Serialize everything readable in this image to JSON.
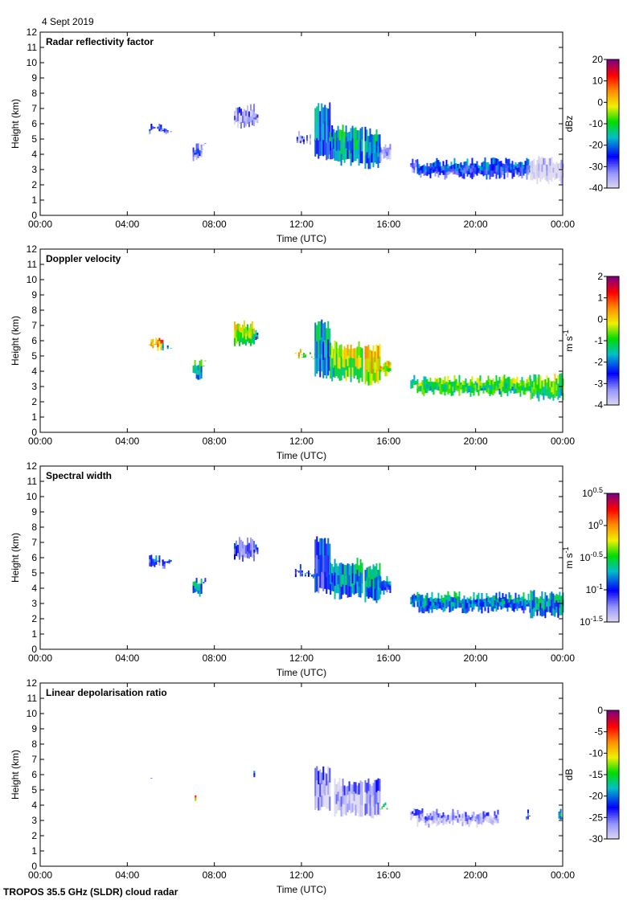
{
  "date": "4 Sept 2019",
  "footer": "TROPOS 35.5 GHz (SLDR) cloud radar",
  "chart_data": [
    {
      "type": "heatmap",
      "title": "Radar reflectivity factor",
      "xlabel": "Time (UTC)",
      "ylabel": "Height (km)",
      "xlim": [
        0,
        24
      ],
      "ylim": [
        0,
        12
      ],
      "xticks": [
        "00:00",
        "04:00",
        "08:00",
        "12:00",
        "16:00",
        "20:00",
        "00:00"
      ],
      "yticks": [
        "0",
        "1",
        "2",
        "3",
        "4",
        "5",
        "6",
        "7",
        "8",
        "9",
        "10",
        "11",
        "12"
      ],
      "colorbar": {
        "unit": "dBz",
        "unit_sup": "",
        "range": [
          -40,
          20
        ],
        "ticks": [
          {
            "v": 20,
            "t": "20"
          },
          {
            "v": 10,
            "t": "10"
          },
          {
            "v": 0,
            "t": "0"
          },
          {
            "v": -10,
            "t": "-10"
          },
          {
            "v": -20,
            "t": "-20"
          },
          {
            "v": -30,
            "t": "-30"
          },
          {
            "v": -40,
            "t": "-40"
          }
        ]
      },
      "regions": [
        [
          5.0,
          5.6,
          5.6,
          6.2,
          -28
        ],
        [
          5.6,
          6.0,
          5.5,
          5.9,
          -30
        ],
        [
          7.0,
          7.4,
          3.7,
          4.8,
          -28
        ],
        [
          7.4,
          7.6,
          4.5,
          4.8,
          -38
        ],
        [
          8.9,
          9.8,
          5.9,
          7.4,
          -35
        ],
        [
          9.8,
          10.0,
          6.2,
          7.0,
          -33
        ],
        [
          11.7,
          12.0,
          5.0,
          5.6,
          -32
        ],
        [
          12.0,
          12.6,
          4.9,
          5.3,
          -32
        ],
        [
          12.6,
          13.3,
          3.8,
          7.4,
          -22
        ],
        [
          13.3,
          13.5,
          3.6,
          6.0,
          -20
        ],
        [
          13.5,
          14.8,
          3.5,
          6.0,
          -16
        ],
        [
          14.9,
          15.6,
          3.3,
          5.8,
          -20
        ],
        [
          15.6,
          16.1,
          3.8,
          4.8,
          -36
        ],
        [
          17.0,
          17.3,
          3.0,
          3.8,
          -28
        ],
        [
          17.3,
          22.5,
          2.6,
          3.8,
          -24
        ],
        [
          22.5,
          24.0,
          2.3,
          3.9,
          -40
        ]
      ]
    },
    {
      "type": "heatmap",
      "title": "Doppler velocity",
      "xlabel": "Time (UTC)",
      "ylabel": "Height (km)",
      "xlim": [
        0,
        24
      ],
      "ylim": [
        0,
        12
      ],
      "xticks": [
        "00:00",
        "04:00",
        "08:00",
        "12:00",
        "16:00",
        "20:00",
        "00:00"
      ],
      "yticks": [
        "0",
        "1",
        "2",
        "3",
        "4",
        "5",
        "6",
        "7",
        "8",
        "9",
        "10",
        "11",
        "12"
      ],
      "colorbar": {
        "unit": "m s",
        "unit_sup": "-1",
        "range": [
          -4,
          2
        ],
        "ticks": [
          {
            "v": 2,
            "t": "2"
          },
          {
            "v": 1,
            "t": "1"
          },
          {
            "v": 0,
            "t": "0"
          },
          {
            "v": -1,
            "t": "-1"
          },
          {
            "v": -2,
            "t": "-2"
          },
          {
            "v": -3,
            "t": "-3"
          },
          {
            "v": -4,
            "t": "-4"
          }
        ]
      },
      "regions": [
        [
          5.0,
          5.6,
          5.6,
          6.2,
          0.2
        ],
        [
          5.6,
          6.0,
          5.5,
          5.9,
          -1.8
        ],
        [
          7.0,
          7.4,
          3.7,
          4.8,
          -1.5
        ],
        [
          7.4,
          7.6,
          4.5,
          4.8,
          -0.8
        ],
        [
          8.9,
          9.8,
          5.9,
          7.4,
          -0.6
        ],
        [
          9.8,
          10.0,
          6.2,
          7.0,
          -1.8
        ],
        [
          11.7,
          12.0,
          5.0,
          5.6,
          0.0
        ],
        [
          12.0,
          12.6,
          4.9,
          5.3,
          -0.8
        ],
        [
          12.6,
          13.3,
          3.8,
          7.4,
          -1.8
        ],
        [
          13.3,
          13.5,
          3.6,
          6.0,
          -1.0
        ],
        [
          13.5,
          14.8,
          3.5,
          6.0,
          -0.5
        ],
        [
          14.9,
          15.6,
          3.3,
          5.8,
          0.0
        ],
        [
          15.6,
          16.1,
          3.8,
          4.8,
          -0.2
        ],
        [
          17.0,
          17.3,
          3.0,
          3.8,
          -1.2
        ],
        [
          17.3,
          22.5,
          2.6,
          3.8,
          -1.0
        ],
        [
          22.5,
          24.0,
          2.3,
          3.9,
          -0.9
        ]
      ]
    },
    {
      "type": "heatmap",
      "title": "Spectral width",
      "xlabel": "Time (UTC)",
      "ylabel": "Height (km)",
      "xlim": [
        0,
        24
      ],
      "ylim": [
        0,
        12
      ],
      "xticks": [
        "00:00",
        "04:00",
        "08:00",
        "12:00",
        "16:00",
        "20:00",
        "00:00"
      ],
      "yticks": [
        "0",
        "1",
        "2",
        "3",
        "4",
        "5",
        "6",
        "7",
        "8",
        "9",
        "10",
        "11",
        "12"
      ],
      "colorbar": {
        "unit": "m s",
        "unit_sup": "-1",
        "range": [
          -1.5,
          0.5
        ],
        "ticks": [
          {
            "v": 0.5,
            "t": "10",
            "s": "0.5"
          },
          {
            "v": 0,
            "t": "10",
            "s": "0"
          },
          {
            "v": -0.5,
            "t": "10",
            "s": "-0.5"
          },
          {
            "v": -1,
            "t": "10",
            "s": "-1"
          },
          {
            "v": -1.5,
            "t": "10",
            "s": "-1.5"
          }
        ]
      },
      "regions": [
        [
          5.0,
          5.6,
          5.6,
          6.2,
          -1.0
        ],
        [
          5.6,
          6.0,
          5.5,
          5.9,
          -1.05
        ],
        [
          7.0,
          7.4,
          3.7,
          4.8,
          -0.8
        ],
        [
          7.4,
          7.6,
          4.5,
          4.8,
          -1.0
        ],
        [
          8.9,
          9.8,
          5.9,
          7.4,
          -1.15
        ],
        [
          9.8,
          10.0,
          6.2,
          7.0,
          -1.05
        ],
        [
          11.7,
          12.0,
          5.0,
          5.6,
          -1.0
        ],
        [
          12.0,
          12.6,
          4.9,
          5.3,
          -1.0
        ],
        [
          12.6,
          13.3,
          3.8,
          7.4,
          -1.0
        ],
        [
          13.3,
          13.5,
          3.6,
          6.0,
          -0.85
        ],
        [
          13.5,
          14.8,
          3.5,
          6.0,
          -0.8
        ],
        [
          14.9,
          15.6,
          3.3,
          5.8,
          -0.7
        ],
        [
          15.6,
          16.1,
          3.8,
          4.8,
          -0.9
        ],
        [
          17.0,
          17.3,
          3.0,
          3.8,
          -0.8
        ],
        [
          17.3,
          22.5,
          2.6,
          3.8,
          -0.8
        ],
        [
          22.5,
          24.0,
          2.3,
          3.9,
          -0.75
        ]
      ]
    },
    {
      "type": "heatmap",
      "title": "Linear depolarisation ratio",
      "xlabel": "Time (UTC)",
      "ylabel": "Height (km)",
      "xlim": [
        0,
        24
      ],
      "ylim": [
        0,
        12
      ],
      "xticks": [
        "00:00",
        "04:00",
        "08:00",
        "12:00",
        "16:00",
        "20:00",
        "00:00"
      ],
      "yticks": [
        "0",
        "1",
        "2",
        "3",
        "4",
        "5",
        "6",
        "7",
        "8",
        "9",
        "10",
        "11",
        "12"
      ],
      "colorbar": {
        "unit": "dB",
        "unit_sup": "",
        "range": [
          -30,
          0
        ],
        "ticks": [
          {
            "v": 0,
            "t": "0"
          },
          {
            "v": -5,
            "t": "-5"
          },
          {
            "v": -10,
            "t": "-10"
          },
          {
            "v": -15,
            "t": "-15"
          },
          {
            "v": -20,
            "t": "-20"
          },
          {
            "v": -25,
            "t": "-25"
          },
          {
            "v": -30,
            "t": "-30"
          }
        ]
      },
      "regions": [
        [
          5.0,
          5.1,
          5.9,
          6.2,
          -23
        ],
        [
          7.1,
          7.15,
          4.5,
          4.8,
          -8
        ],
        [
          9.8,
          10.0,
          5.9,
          6.3,
          -22
        ],
        [
          12.6,
          13.3,
          3.8,
          6.6,
          -27
        ],
        [
          13.5,
          14.8,
          3.5,
          5.8,
          -28
        ],
        [
          14.9,
          15.6,
          3.3,
          5.8,
          -27
        ],
        [
          15.6,
          15.9,
          3.8,
          4.2,
          -15
        ],
        [
          17.0,
          17.3,
          3.2,
          3.8,
          -26
        ],
        [
          17.3,
          21.0,
          2.8,
          3.8,
          -28
        ],
        [
          22.3,
          22.5,
          3.2,
          3.8,
          -24
        ],
        [
          23.8,
          24.0,
          3.3,
          3.8,
          -18
        ]
      ]
    }
  ]
}
